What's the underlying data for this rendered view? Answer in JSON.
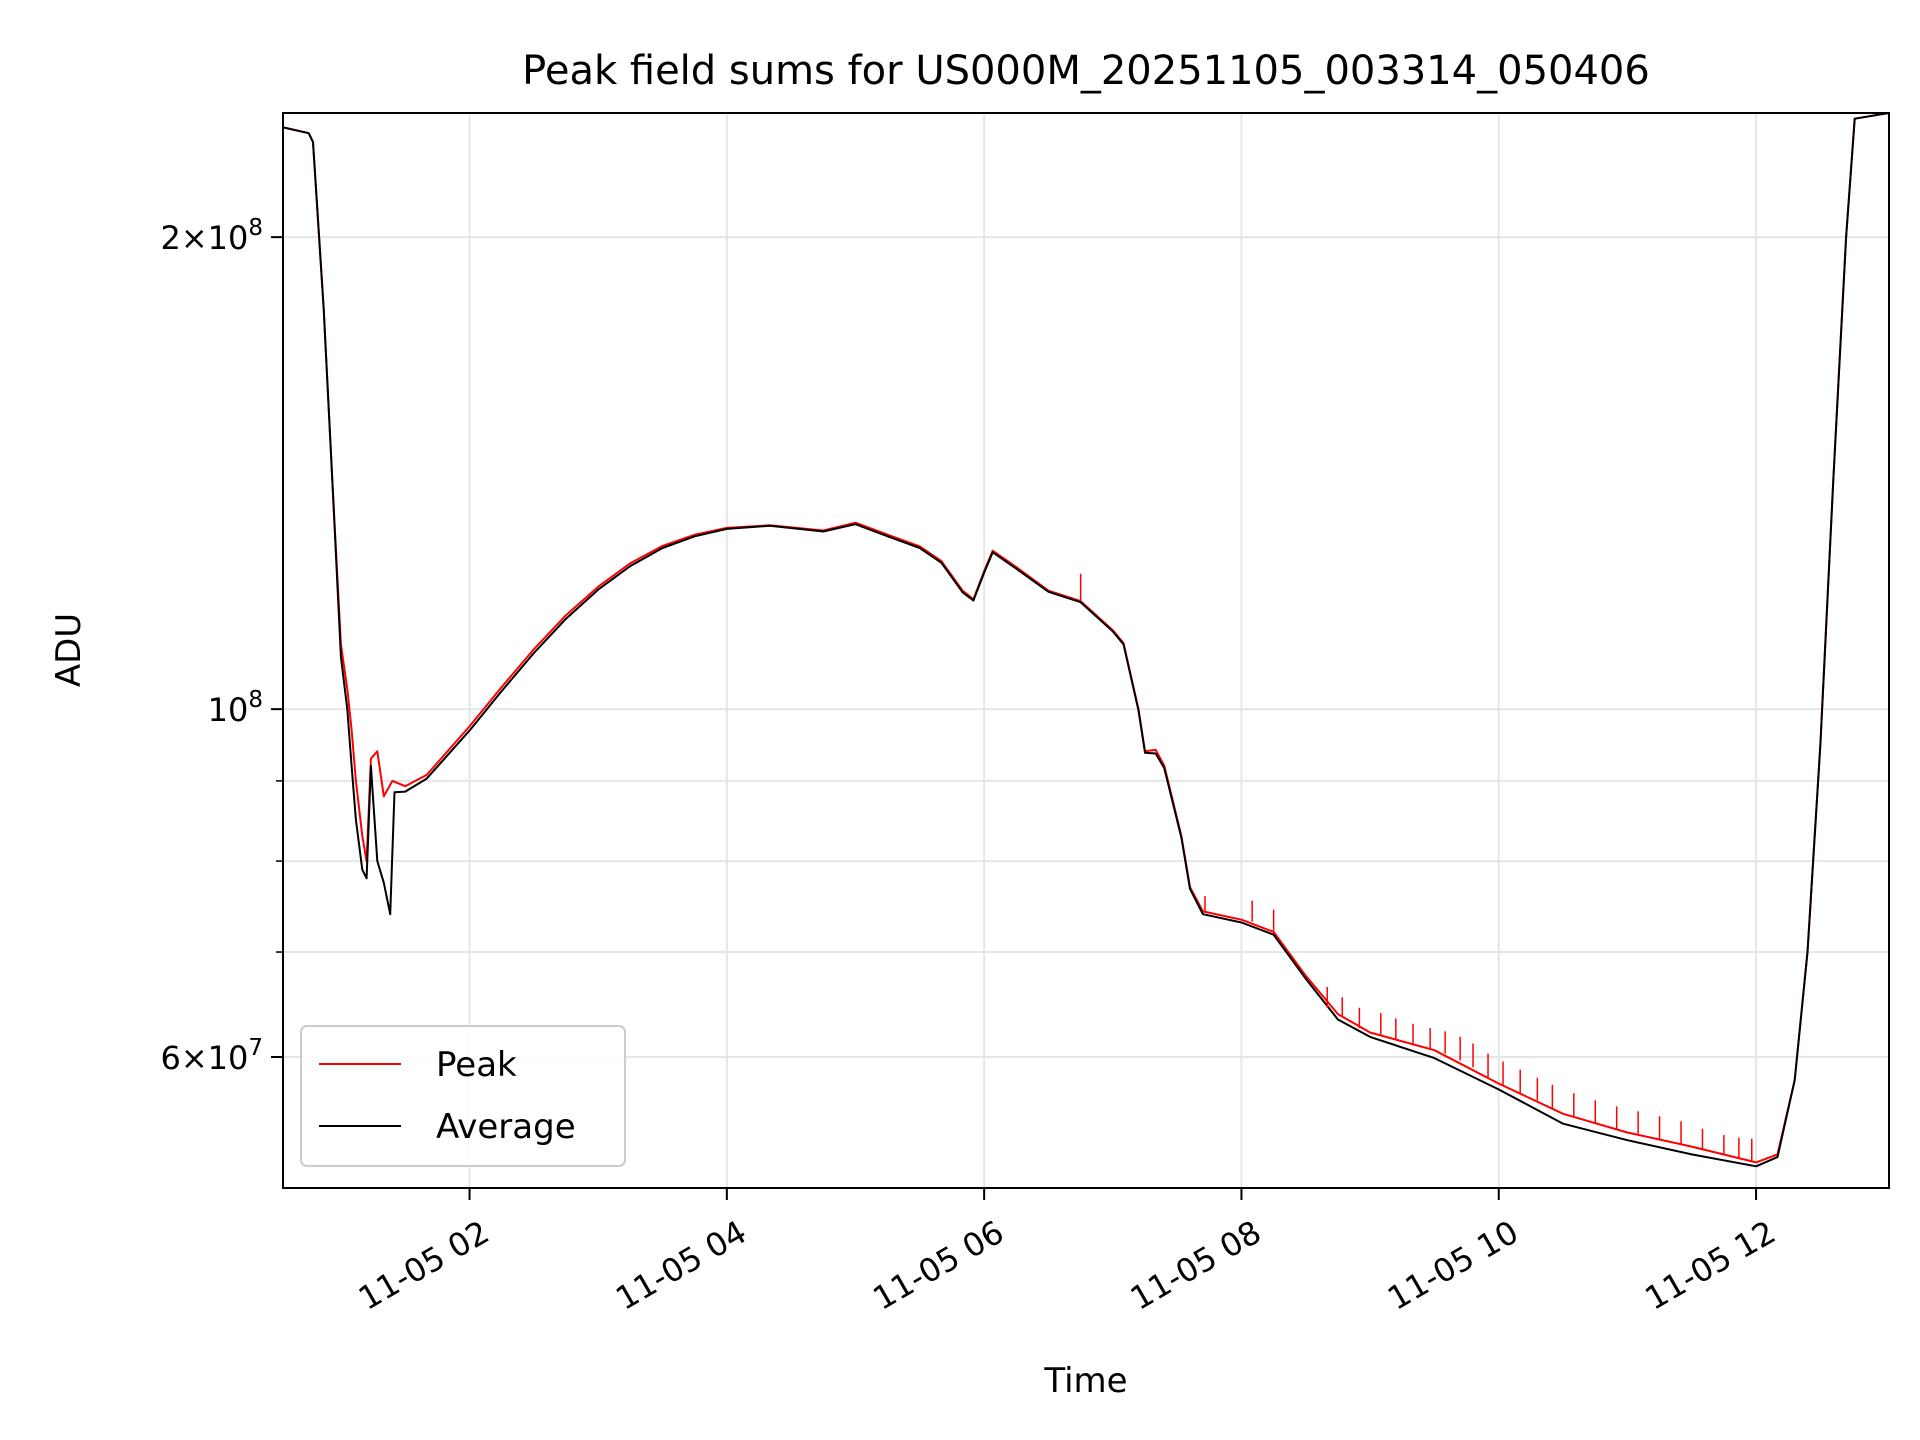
{
  "chart_data": {
    "type": "line",
    "title": "Peak field sums for US000M_20251105_003314_050406",
    "xlabel": "Time",
    "ylabel": "ADU",
    "yscale": "log",
    "ylim": [
      49500000,
      240000000
    ],
    "xlim": [
      "2025-11-05 00:33",
      "2025-11-05 13:02"
    ],
    "x_ticks": [
      {
        "x": "2025-11-05 02:00",
        "label": "11-05 02"
      },
      {
        "x": "2025-11-05 04:00",
        "label": "11-05 04"
      },
      {
        "x": "2025-11-05 06:00",
        "label": "11-05 06"
      },
      {
        "x": "2025-11-05 08:00",
        "label": "11-05 08"
      },
      {
        "x": "2025-11-05 10:00",
        "label": "11-05 10"
      },
      {
        "x": "2025-11-05 12:00",
        "label": "11-05 12"
      }
    ],
    "y_major_ticks": [
      {
        "y": 60000000,
        "mantissa": "6",
        "exponent": "7"
      },
      {
        "y": 100000000,
        "mantissa": "",
        "exponent": "8"
      },
      {
        "y": 200000000,
        "mantissa": "2",
        "exponent": "8"
      }
    ],
    "y_minor_ticks": [
      70000000,
      80000000,
      90000000
    ],
    "grid": true,
    "legend_position": "lower-left",
    "series": [
      {
        "name": "Peak",
        "color": "#ff0000",
        "points": [
          [
            "2025-11-05 00:33",
            235000000
          ],
          [
            "2025-11-05 00:45",
            233000000
          ],
          [
            "2025-11-05 00:47",
            230000000
          ],
          [
            "2025-11-05 00:52",
            180000000
          ],
          [
            "2025-11-05 00:56",
            140000000
          ],
          [
            "2025-11-05 01:00",
            110000000
          ],
          [
            "2025-11-05 01:03",
            103000000
          ],
          [
            "2025-11-05 01:05",
            97000000
          ],
          [
            "2025-11-05 01:07",
            90000000
          ],
          [
            "2025-11-05 01:10",
            83000000
          ],
          [
            "2025-11-05 01:12",
            80000000
          ],
          [
            "2025-11-05 01:14",
            93000000
          ],
          [
            "2025-11-05 01:17",
            94000000
          ],
          [
            "2025-11-05 01:20",
            88000000
          ],
          [
            "2025-11-05 01:24",
            90000000
          ],
          [
            "2025-11-05 01:30",
            89300000
          ],
          [
            "2025-11-05 01:40",
            90800000
          ],
          [
            "2025-11-05 02:00",
            97500000
          ],
          [
            "2025-11-05 02:15",
            103300000
          ],
          [
            "2025-11-05 02:30",
            109200000
          ],
          [
            "2025-11-05 02:45",
            114800000
          ],
          [
            "2025-11-05 03:00",
            119700000
          ],
          [
            "2025-11-05 03:15",
            123900000
          ],
          [
            "2025-11-05 03:30",
            127100000
          ],
          [
            "2025-11-05 03:45",
            129200000
          ],
          [
            "2025-11-05 04:00",
            130500000
          ],
          [
            "2025-11-05 04:20",
            131000000
          ],
          [
            "2025-11-05 04:45",
            130000000
          ],
          [
            "2025-11-05 05:00",
            131500000
          ],
          [
            "2025-11-05 05:15",
            129200000
          ],
          [
            "2025-11-05 05:30",
            127000000
          ],
          [
            "2025-11-05 05:40",
            124300000
          ],
          [
            "2025-11-05 05:50",
            119000000
          ],
          [
            "2025-11-05 05:55",
            117500000
          ],
          [
            "2025-11-05 06:00",
            122500000
          ],
          [
            "2025-11-05 06:04",
            126200000
          ],
          [
            "2025-11-05 06:15",
            123200000
          ],
          [
            "2025-11-05 06:30",
            119000000
          ],
          [
            "2025-11-05 06:45",
            117200000
          ],
          [
            "2025-11-05 07:00",
            112300000
          ],
          [
            "2025-11-05 07:05",
            110200000
          ],
          [
            "2025-11-05 07:12",
            100000000
          ],
          [
            "2025-11-05 07:15",
            94000000
          ],
          [
            "2025-11-05 07:20",
            94200000
          ],
          [
            "2025-11-05 07:24",
            92000000
          ],
          [
            "2025-11-05 07:32",
            83000000
          ],
          [
            "2025-11-05 07:36",
            77000000
          ],
          [
            "2025-11-05 07:42",
            74300000
          ],
          [
            "2025-11-05 08:00",
            73400000
          ],
          [
            "2025-11-05 08:15",
            72100000
          ],
          [
            "2025-11-05 08:30",
            67600000
          ],
          [
            "2025-11-05 08:45",
            63900000
          ],
          [
            "2025-11-05 09:00",
            62200000
          ],
          [
            "2025-11-05 09:30",
            60600000
          ],
          [
            "2025-11-05 10:00",
            57700000
          ],
          [
            "2025-11-05 10:30",
            55200000
          ],
          [
            "2025-11-05 11:00",
            53700000
          ],
          [
            "2025-11-05 11:30",
            52600000
          ],
          [
            "2025-11-05 12:00",
            51400000
          ],
          [
            "2025-11-05 12:10",
            52000000
          ],
          [
            "2025-11-05 12:18",
            58000000
          ],
          [
            "2025-11-05 12:24",
            70000000
          ],
          [
            "2025-11-05 12:30",
            95000000
          ],
          [
            "2025-11-05 12:36",
            140000000
          ],
          [
            "2025-11-05 12:42",
            200000000
          ],
          [
            "2025-11-05 12:46",
            238000000
          ],
          [
            "2025-11-05 13:02",
            240000000
          ]
        ]
      },
      {
        "name": "Average",
        "color": "#000000",
        "points": [
          [
            "2025-11-05 00:33",
            235000000
          ],
          [
            "2025-11-05 00:45",
            233000000
          ],
          [
            "2025-11-05 00:47",
            230000000
          ],
          [
            "2025-11-05 00:52",
            180000000
          ],
          [
            "2025-11-05 00:56",
            140000000
          ],
          [
            "2025-11-05 01:00",
            108000000
          ],
          [
            "2025-11-05 01:03",
            100000000
          ],
          [
            "2025-11-05 01:05",
            92000000
          ],
          [
            "2025-11-05 01:07",
            85000000
          ],
          [
            "2025-11-05 01:10",
            79000000
          ],
          [
            "2025-11-05 01:12",
            78000000
          ],
          [
            "2025-11-05 01:14",
            92000000
          ],
          [
            "2025-11-05 01:17",
            80000000
          ],
          [
            "2025-11-05 01:20",
            77500000
          ],
          [
            "2025-11-05 01:23",
            74000000
          ],
          [
            "2025-11-05 01:25",
            88500000
          ],
          [
            "2025-11-05 01:30",
            88600000
          ],
          [
            "2025-11-05 01:40",
            90300000
          ],
          [
            "2025-11-05 02:00",
            96900000
          ],
          [
            "2025-11-05 02:15",
            102700000
          ],
          [
            "2025-11-05 02:30",
            108600000
          ],
          [
            "2025-11-05 02:45",
            114200000
          ],
          [
            "2025-11-05 03:00",
            119200000
          ],
          [
            "2025-11-05 03:15",
            123400000
          ],
          [
            "2025-11-05 03:30",
            126700000
          ],
          [
            "2025-11-05 03:45",
            128900000
          ],
          [
            "2025-11-05 04:00",
            130300000
          ],
          [
            "2025-11-05 04:20",
            130900000
          ],
          [
            "2025-11-05 04:45",
            129800000
          ],
          [
            "2025-11-05 05:00",
            131200000
          ],
          [
            "2025-11-05 05:15",
            128900000
          ],
          [
            "2025-11-05 05:30",
            126700000
          ],
          [
            "2025-11-05 05:40",
            124000000
          ],
          [
            "2025-11-05 05:50",
            118700000
          ],
          [
            "2025-11-05 05:55",
            117300000
          ],
          [
            "2025-11-05 06:00",
            122200000
          ],
          [
            "2025-11-05 06:04",
            125900000
          ],
          [
            "2025-11-05 06:15",
            122900000
          ],
          [
            "2025-11-05 06:30",
            118800000
          ],
          [
            "2025-11-05 06:45",
            117000000
          ],
          [
            "2025-11-05 07:00",
            112100000
          ],
          [
            "2025-11-05 07:05",
            110000000
          ],
          [
            "2025-11-05 07:12",
            99800000
          ],
          [
            "2025-11-05 07:15",
            93800000
          ],
          [
            "2025-11-05 07:20",
            93700000
          ],
          [
            "2025-11-05 07:24",
            91700000
          ],
          [
            "2025-11-05 07:32",
            82800000
          ],
          [
            "2025-11-05 07:36",
            76800000
          ],
          [
            "2025-11-05 07:42",
            74000000
          ],
          [
            "2025-11-05 08:00",
            73100000
          ],
          [
            "2025-11-05 08:15",
            71800000
          ],
          [
            "2025-11-05 08:30",
            67300000
          ],
          [
            "2025-11-05 08:45",
            63400000
          ],
          [
            "2025-11-05 09:00",
            61800000
          ],
          [
            "2025-11-05 09:30",
            59900000
          ],
          [
            "2025-11-05 10:00",
            57200000
          ],
          [
            "2025-11-05 10:30",
            54400000
          ],
          [
            "2025-11-05 11:00",
            53100000
          ],
          [
            "2025-11-05 11:30",
            52000000
          ],
          [
            "2025-11-05 12:00",
            51100000
          ],
          [
            "2025-11-05 12:10",
            51800000
          ],
          [
            "2025-11-05 12:18",
            58000000
          ],
          [
            "2025-11-05 12:24",
            70000000
          ],
          [
            "2025-11-05 12:30",
            95000000
          ],
          [
            "2025-11-05 12:36",
            140000000
          ],
          [
            "2025-11-05 12:42",
            200000000
          ],
          [
            "2025-11-05 12:46",
            238000000
          ],
          [
            "2025-11-05 13:02",
            240000000
          ]
        ]
      }
    ],
    "peak_spikes": [
      [
        "2025-11-05 06:45",
        117200000,
        122000000
      ],
      [
        "2025-11-05 07:43",
        74300000,
        76000000
      ],
      [
        "2025-11-05 08:05",
        73200000,
        75500000
      ],
      [
        "2025-11-05 08:15",
        72100000,
        74500000
      ],
      [
        "2025-11-05 08:40",
        64500000,
        66500000
      ],
      [
        "2025-11-05 08:47",
        63700000,
        65500000
      ],
      [
        "2025-11-05 08:55",
        62600000,
        64500000
      ],
      [
        "2025-11-05 09:05",
        62000000,
        64000000
      ],
      [
        "2025-11-05 09:12",
        61600000,
        63500000
      ],
      [
        "2025-11-05 09:20",
        61100000,
        63000000
      ],
      [
        "2025-11-05 09:28",
        60700000,
        62600000
      ],
      [
        "2025-11-05 09:35",
        60300000,
        62300000
      ],
      [
        "2025-11-05 09:42",
        59700000,
        61800000
      ],
      [
        "2025-11-05 09:48",
        59100000,
        61200000
      ],
      [
        "2025-11-05 09:55",
        58200000,
        60300000
      ],
      [
        "2025-11-05 10:02",
        57600000,
        59600000
      ],
      [
        "2025-11-05 10:10",
        56900000,
        58900000
      ],
      [
        "2025-11-05 10:18",
        56300000,
        58200000
      ],
      [
        "2025-11-05 10:25",
        55600000,
        57600000
      ],
      [
        "2025-11-05 10:35",
        55000000,
        56900000
      ],
      [
        "2025-11-05 10:45",
        54500000,
        56300000
      ],
      [
        "2025-11-05 10:55",
        54000000,
        55800000
      ],
      [
        "2025-11-05 11:05",
        53600000,
        55400000
      ],
      [
        "2025-11-05 11:15",
        53200000,
        55000000
      ],
      [
        "2025-11-05 11:25",
        52800000,
        54600000
      ],
      [
        "2025-11-05 11:35",
        52400000,
        54000000
      ],
      [
        "2025-11-05 11:45",
        52000000,
        53500000
      ],
      [
        "2025-11-05 11:52",
        51700000,
        53300000
      ],
      [
        "2025-11-05 11:58",
        51500000,
        53200000
      ]
    ]
  }
}
